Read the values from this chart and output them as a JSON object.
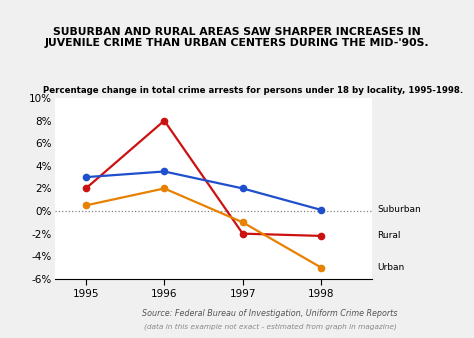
{
  "title": "SUBURBAN AND RURAL AREAS SAW SHARPER INCREASES IN\nJUVENILE CRIME THAN URBAN CENTERS DURING THE MID-'90S.",
  "subtitle": "Percentage change in total crime arrests for persons under 18 by locality, 1995-1998.",
  "source_line1": "Source: Federal Bureau of Investigation, Uniform Crime Reports",
  "source_line2": "(data in this example not exact - estimated from graph in magazine)",
  "years": [
    1995,
    1996,
    1997,
    1998
  ],
  "suburban": [
    3.0,
    3.5,
    2.0,
    0.1
  ],
  "rural": [
    2.0,
    8.0,
    -2.0,
    -2.2
  ],
  "urban": [
    0.5,
    2.0,
    -1.0,
    -5.0
  ],
  "suburban_color": "#1F4FCC",
  "rural_color": "#CC1111",
  "urban_color": "#E88000",
  "ylim": [
    -6,
    10
  ],
  "yticks": [
    -6,
    -4,
    -2,
    0,
    2,
    4,
    6,
    8,
    10
  ],
  "background_color": "#f0f0f0",
  "plot_bg_color": "#ffffff",
  "title_bg_color": "#d4d4d4"
}
